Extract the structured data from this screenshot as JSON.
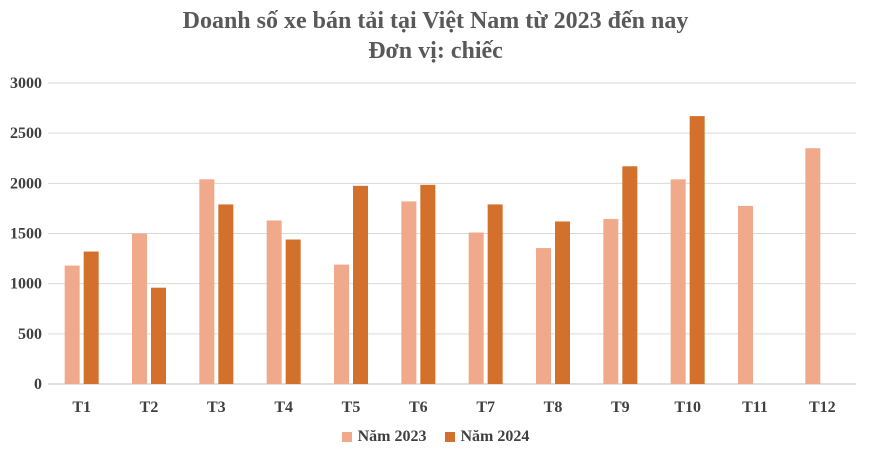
{
  "chart_data": {
    "type": "bar",
    "title": "Doanh số xe bán tải tại Việt Nam từ 2023 đến nay",
    "subtitle": "Đơn vị: chiếc",
    "categories": [
      "T1",
      "T2",
      "T3",
      "T4",
      "T5",
      "T6",
      "T7",
      "T8",
      "T9",
      "T10",
      "T11",
      "T12"
    ],
    "series": [
      {
        "name": "Năm 2023",
        "color": "#F0A98A",
        "values": [
          1180,
          1500,
          2040,
          1630,
          1190,
          1820,
          1510,
          1355,
          1645,
          2040,
          1775,
          2350
        ]
      },
      {
        "name": "Năm 2024",
        "color": "#D2702C",
        "values": [
          1320,
          960,
          1790,
          1440,
          1975,
          1985,
          1790,
          1620,
          2170,
          2670,
          null,
          null
        ]
      }
    ],
    "ylim": [
      0,
      3000
    ],
    "yticks": [
      0,
      500,
      1000,
      1500,
      2000,
      2500,
      3000
    ],
    "grid": true,
    "legend": "bottom"
  }
}
